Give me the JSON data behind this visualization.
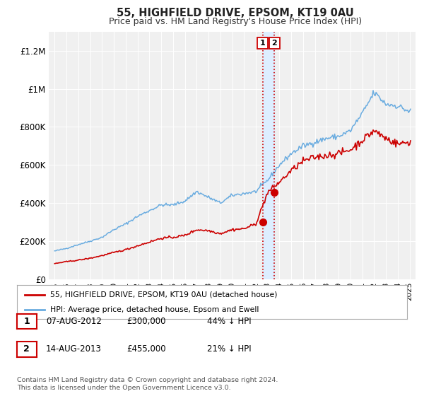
{
  "title": "55, HIGHFIELD DRIVE, EPSOM, KT19 0AU",
  "subtitle": "Price paid vs. HM Land Registry's House Price Index (HPI)",
  "legend_line1": "55, HIGHFIELD DRIVE, EPSOM, KT19 0AU (detached house)",
  "legend_line2": "HPI: Average price, detached house, Epsom and Ewell",
  "table_rows": [
    {
      "num": "1",
      "date": "07-AUG-2012",
      "price": "£300,000",
      "change": "44% ↓ HPI"
    },
    {
      "num": "2",
      "date": "14-AUG-2013",
      "price": "£455,000",
      "change": "21% ↓ HPI"
    }
  ],
  "footer": "Contains HM Land Registry data © Crown copyright and database right 2024.\nThis data is licensed under the Open Government Licence v3.0.",
  "ylim": [
    0,
    1300000
  ],
  "yticks": [
    0,
    200000,
    400000,
    600000,
    800000,
    1000000,
    1200000
  ],
  "ytick_labels": [
    "£0",
    "£200K",
    "£400K",
    "£600K",
    "£800K",
    "£1M",
    "£1.2M"
  ],
  "hpi_color": "#6aace0",
  "price_color": "#cc0000",
  "dot_color": "#cc0000",
  "vline_color": "#cc0000",
  "shade_color": "#ddeeff",
  "background_color": "#ffffff",
  "plot_bg_color": "#f0f0f0",
  "grid_color": "#ffffff",
  "transaction1_x": 2012.58,
  "transaction1_y": 300000,
  "transaction2_x": 2013.58,
  "transaction2_y": 455000,
  "xmin": 1994.5,
  "xmax": 2025.5,
  "xticks": [
    1995,
    1996,
    1997,
    1998,
    1999,
    2000,
    2001,
    2002,
    2003,
    2004,
    2005,
    2006,
    2007,
    2008,
    2009,
    2010,
    2011,
    2012,
    2013,
    2014,
    2015,
    2016,
    2017,
    2018,
    2019,
    2020,
    2021,
    2022,
    2023,
    2024,
    2025
  ],
  "hpi_annual": {
    "1995": 148000,
    "1996": 162000,
    "1997": 182000,
    "1998": 200000,
    "1999": 220000,
    "2000": 260000,
    "2001": 290000,
    "2002": 330000,
    "2003": 360000,
    "2004": 390000,
    "2005": 390000,
    "2006": 410000,
    "2007": 460000,
    "2008": 430000,
    "2009": 400000,
    "2010": 440000,
    "2011": 450000,
    "2012": 460000,
    "2013": 520000,
    "2014": 600000,
    "2015": 660000,
    "2016": 700000,
    "2017": 720000,
    "2018": 740000,
    "2019": 750000,
    "2020": 780000,
    "2021": 870000,
    "2022": 980000,
    "2023": 920000,
    "2024": 910000,
    "2025": 880000
  },
  "price_annual": {
    "1995": 82000,
    "1996": 92000,
    "1997": 100000,
    "1998": 110000,
    "1999": 124000,
    "2000": 140000,
    "2001": 155000,
    "2002": 175000,
    "2003": 195000,
    "2004": 215000,
    "2005": 220000,
    "2006": 230000,
    "2007": 260000,
    "2008": 255000,
    "2009": 240000,
    "2010": 260000,
    "2011": 265000,
    "2012": 290000,
    "2013": 455000,
    "2014": 510000,
    "2015": 570000,
    "2016": 620000,
    "2017": 640000,
    "2018": 650000,
    "2019": 660000,
    "2020": 680000,
    "2021": 730000,
    "2022": 780000,
    "2023": 740000,
    "2024": 710000,
    "2025": 720000
  }
}
